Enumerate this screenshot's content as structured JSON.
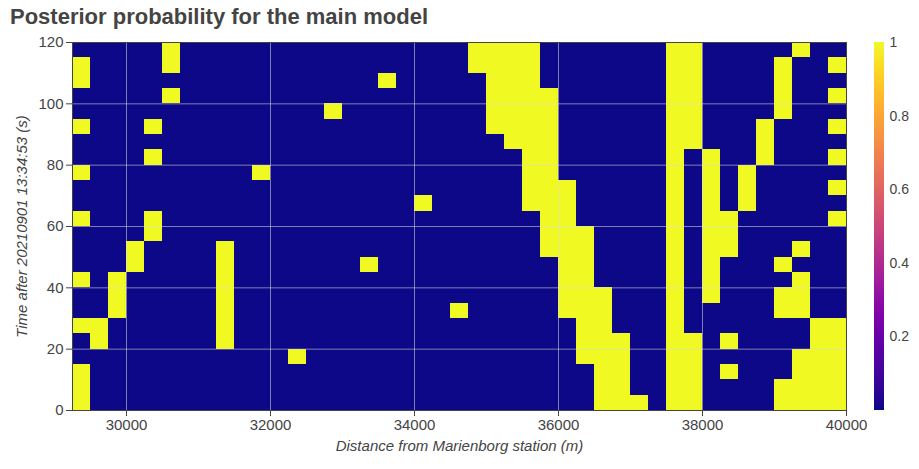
{
  "chart_data": {
    "type": "heatmap",
    "title": "Posterior probability for the main model",
    "x_label": "Distance from Marienborg station (m)",
    "y_label": "Time after 20210901 13:34:53 (s)",
    "xlim": [
      29250,
      40000
    ],
    "xticks": [
      30000,
      32000,
      34000,
      36000,
      38000,
      40000
    ],
    "ylim": [
      0,
      120
    ],
    "yticks": [
      0,
      20,
      40,
      60,
      80,
      100,
      120
    ],
    "grid": true,
    "color": "plasma",
    "colorbar": {
      "range": [
        0,
        1
      ],
      "ticks": [
        0.2,
        0.4,
        0.6,
        0.8,
        1
      ]
    },
    "x_edges": [
      29250,
      29500,
      29750,
      30000,
      30250,
      30500,
      30750,
      31000,
      31250,
      31500,
      31750,
      32000,
      32250,
      32500,
      32750,
      33000,
      33250,
      33500,
      33750,
      34000,
      34250,
      34500,
      34750,
      35000,
      35250,
      35500,
      35750,
      36000,
      36250,
      36500,
      36750,
      37000,
      37250,
      37500,
      37750,
      38000,
      38250,
      38500,
      38750,
      39000,
      39250,
      39500,
      39750,
      40000
    ],
    "y_edges": [
      0,
      5,
      10,
      15,
      20,
      25,
      30,
      35,
      40,
      45,
      50,
      55,
      60,
      65,
      70,
      75,
      80,
      85,
      90,
      95,
      100,
      105,
      110,
      115,
      120
    ],
    "values": [
      [
        1,
        0,
        0,
        0,
        0,
        0,
        0,
        0,
        0,
        0,
        0,
        0,
        0,
        0,
        0,
        0,
        0,
        0,
        0,
        0,
        0,
        0,
        0,
        0,
        0,
        0,
        0,
        0,
        0,
        1,
        1,
        1,
        0,
        1,
        1,
        0,
        0,
        0,
        0,
        1,
        1,
        1,
        1
      ],
      [
        1,
        0,
        0,
        0,
        0,
        0,
        0,
        0,
        0,
        0,
        0,
        0,
        0,
        0,
        0,
        0,
        0,
        0,
        0,
        0,
        0,
        0,
        0,
        0,
        0,
        0,
        0,
        0,
        0,
        1,
        1,
        0,
        0,
        1,
        1,
        0,
        0,
        0,
        0,
        1,
        1,
        1,
        1
      ],
      [
        1,
        0,
        0,
        0,
        0,
        0,
        0,
        0,
        0,
        0,
        0,
        0,
        0,
        0,
        0,
        0,
        0,
        0,
        0,
        0,
        0,
        0,
        0,
        0,
        0,
        0,
        0,
        0,
        0,
        1,
        1,
        0,
        0,
        1,
        1,
        0,
        1,
        0,
        0,
        0,
        1,
        1,
        1
      ],
      [
        0,
        0,
        0,
        0,
        0,
        0,
        0,
        0,
        0,
        0,
        0,
        0,
        1,
        0,
        0,
        0,
        0,
        0,
        0,
        0,
        0,
        0,
        0,
        0,
        0,
        0,
        0,
        0,
        1,
        1,
        1,
        0,
        0,
        1,
        1,
        0,
        0,
        0,
        0,
        0,
        1,
        1,
        1
      ],
      [
        0,
        1,
        0,
        0,
        0,
        0,
        0,
        0,
        1,
        0,
        0,
        0,
        0,
        0,
        0,
        0,
        0,
        0,
        0,
        0,
        0,
        0,
        0,
        0,
        0,
        0,
        0,
        0,
        1,
        1,
        1,
        0,
        0,
        1,
        1,
        0,
        1,
        0,
        0,
        0,
        0,
        1,
        1
      ],
      [
        1,
        1,
        0,
        0,
        0,
        0,
        0,
        0,
        1,
        0,
        0,
        0,
        0,
        0,
        0,
        0,
        0,
        0,
        0,
        0,
        0,
        0,
        0,
        0,
        0,
        0,
        0,
        0,
        1,
        1,
        0,
        0,
        0,
        1,
        0,
        0,
        0,
        0,
        0,
        0,
        0,
        1,
        1
      ],
      [
        0,
        0,
        1,
        0,
        0,
        0,
        0,
        0,
        1,
        0,
        0,
        0,
        0,
        0,
        0,
        0,
        0,
        0,
        0,
        0,
        0,
        1,
        0,
        0,
        0,
        0,
        0,
        1,
        1,
        1,
        0,
        0,
        0,
        1,
        0,
        0,
        0,
        0,
        0,
        1,
        1,
        0,
        0
      ],
      [
        0,
        0,
        1,
        0,
        0,
        0,
        0,
        0,
        1,
        0,
        0,
        0,
        0,
        0,
        0,
        0,
        0,
        0,
        0,
        0,
        0,
        0,
        0,
        0,
        0,
        0,
        0,
        1,
        1,
        1,
        0,
        0,
        0,
        1,
        0,
        1,
        0,
        0,
        0,
        1,
        1,
        0,
        0
      ],
      [
        1,
        0,
        1,
        0,
        0,
        0,
        0,
        0,
        1,
        0,
        0,
        0,
        0,
        0,
        0,
        0,
        0,
        0,
        0,
        0,
        0,
        0,
        0,
        0,
        0,
        0,
        0,
        1,
        1,
        0,
        0,
        0,
        0,
        1,
        0,
        1,
        0,
        0,
        0,
        0,
        1,
        0,
        0
      ],
      [
        0,
        0,
        0,
        1,
        0,
        0,
        0,
        0,
        1,
        0,
        0,
        0,
        0,
        0,
        0,
        0,
        1,
        0,
        0,
        0,
        0,
        0,
        0,
        0,
        0,
        0,
        0,
        1,
        1,
        0,
        0,
        0,
        0,
        1,
        0,
        1,
        0,
        0,
        0,
        1,
        0,
        0,
        0
      ],
      [
        0,
        0,
        0,
        1,
        0,
        0,
        0,
        0,
        1,
        0,
        0,
        0,
        0,
        0,
        0,
        0,
        0,
        0,
        0,
        0,
        0,
        0,
        0,
        0,
        0,
        0,
        1,
        1,
        1,
        0,
        0,
        0,
        0,
        1,
        0,
        1,
        1,
        0,
        0,
        0,
        1,
        0,
        0
      ],
      [
        0,
        0,
        0,
        0,
        1,
        0,
        0,
        0,
        0,
        0,
        0,
        0,
        0,
        0,
        0,
        0,
        0,
        0,
        0,
        0,
        0,
        0,
        0,
        0,
        0,
        0,
        1,
        1,
        1,
        0,
        0,
        0,
        0,
        1,
        0,
        1,
        1,
        0,
        0,
        0,
        0,
        0,
        0
      ],
      [
        1,
        0,
        0,
        0,
        1,
        0,
        0,
        0,
        0,
        0,
        0,
        0,
        0,
        0,
        0,
        0,
        0,
        0,
        0,
        0,
        0,
        0,
        0,
        0,
        0,
        0,
        1,
        1,
        0,
        0,
        0,
        0,
        0,
        1,
        0,
        1,
        1,
        0,
        0,
        0,
        0,
        0,
        1
      ],
      [
        0,
        0,
        0,
        0,
        0,
        0,
        0,
        0,
        0,
        0,
        0,
        0,
        0,
        0,
        0,
        0,
        0,
        0,
        0,
        1,
        0,
        0,
        0,
        0,
        0,
        1,
        1,
        1,
        0,
        0,
        0,
        0,
        0,
        1,
        0,
        1,
        0,
        1,
        0,
        0,
        0,
        0,
        0
      ],
      [
        0,
        0,
        0,
        0,
        0,
        0,
        0,
        0,
        0,
        0,
        0,
        0,
        0,
        0,
        0,
        0,
        0,
        0,
        0,
        0,
        0,
        0,
        0,
        0,
        0,
        1,
        1,
        1,
        0,
        0,
        0,
        0,
        0,
        1,
        0,
        1,
        0,
        1,
        0,
        0,
        0,
        0,
        1
      ],
      [
        1,
        0,
        0,
        0,
        0,
        0,
        0,
        0,
        0,
        0,
        1,
        0,
        0,
        0,
        0,
        0,
        0,
        0,
        0,
        0,
        0,
        0,
        0,
        0,
        0,
        1,
        1,
        0,
        0,
        0,
        0,
        0,
        0,
        1,
        0,
        1,
        0,
        1,
        0,
        0,
        0,
        0,
        0
      ],
      [
        0,
        0,
        0,
        0,
        1,
        0,
        0,
        0,
        0,
        0,
        0,
        0,
        0,
        0,
        0,
        0,
        0,
        0,
        0,
        0,
        0,
        0,
        0,
        0,
        0,
        1,
        1,
        0,
        0,
        0,
        0,
        0,
        0,
        1,
        0,
        1,
        0,
        0,
        1,
        0,
        0,
        0,
        1
      ],
      [
        0,
        0,
        0,
        0,
        0,
        0,
        0,
        0,
        0,
        0,
        0,
        0,
        0,
        0,
        0,
        0,
        0,
        0,
        0,
        0,
        0,
        0,
        0,
        0,
        1,
        1,
        1,
        0,
        0,
        0,
        0,
        0,
        0,
        1,
        1,
        0,
        0,
        0,
        1,
        0,
        0,
        0,
        0
      ],
      [
        1,
        0,
        0,
        0,
        1,
        0,
        0,
        0,
        0,
        0,
        0,
        0,
        0,
        0,
        0,
        0,
        0,
        0,
        0,
        0,
        0,
        0,
        0,
        1,
        1,
        1,
        1,
        0,
        0,
        0,
        0,
        0,
        0,
        1,
        1,
        0,
        0,
        0,
        1,
        0,
        0,
        0,
        1
      ],
      [
        0,
        0,
        0,
        0,
        0,
        0,
        0,
        0,
        0,
        0,
        0,
        0,
        0,
        0,
        1,
        0,
        0,
        0,
        0,
        0,
        0,
        0,
        0,
        1,
        1,
        1,
        1,
        0,
        0,
        0,
        0,
        0,
        0,
        1,
        1,
        0,
        0,
        0,
        0,
        1,
        0,
        0,
        0
      ],
      [
        0,
        0,
        0,
        0,
        0,
        1,
        0,
        0,
        0,
        0,
        0,
        0,
        0,
        0,
        0,
        0,
        0,
        0,
        0,
        0,
        0,
        0,
        0,
        1,
        1,
        1,
        1,
        0,
        0,
        0,
        0,
        0,
        0,
        1,
        1,
        0,
        0,
        0,
        0,
        1,
        0,
        0,
        1
      ],
      [
        1,
        0,
        0,
        0,
        0,
        0,
        0,
        0,
        0,
        0,
        0,
        0,
        0,
        0,
        0,
        0,
        0,
        1,
        0,
        0,
        0,
        0,
        0,
        1,
        1,
        1,
        0,
        0,
        0,
        0,
        0,
        0,
        0,
        1,
        1,
        0,
        0,
        0,
        0,
        1,
        0,
        0,
        0
      ],
      [
        1,
        0,
        0,
        0,
        0,
        1,
        0,
        0,
        0,
        0,
        0,
        0,
        0,
        0,
        0,
        0,
        0,
        0,
        0,
        0,
        0,
        0,
        1,
        1,
        1,
        1,
        0,
        0,
        0,
        0,
        0,
        0,
        0,
        1,
        1,
        0,
        0,
        0,
        0,
        1,
        0,
        0,
        1
      ],
      [
        0,
        0,
        0,
        0,
        0,
        1,
        0,
        0,
        0,
        0,
        0,
        0,
        0,
        0,
        0,
        0,
        0,
        0,
        0,
        0,
        0,
        0,
        1,
        1,
        1,
        1,
        0,
        0,
        0,
        0,
        0,
        0,
        0,
        1,
        1,
        0,
        0,
        0,
        0,
        0,
        1,
        0,
        0
      ]
    ]
  }
}
